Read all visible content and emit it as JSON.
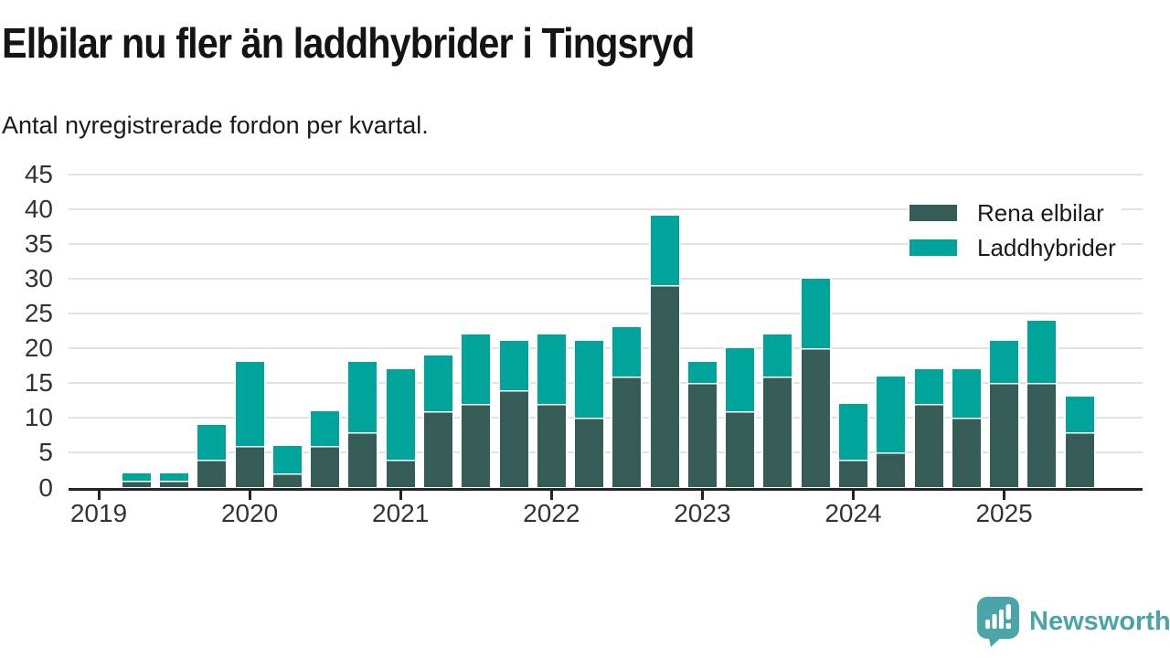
{
  "header": {
    "title": "Elbilar nu fler än laddhybrider i Tingsryd",
    "subtitle": "Antal nyregistrerade fordon per kvartal."
  },
  "legend": [
    {
      "label": "Rena elbilar"
    },
    {
      "label": "Laddhybrider"
    }
  ],
  "footer": {
    "brand": "Newsworthy"
  },
  "colors": {
    "elbilar": "#365c57",
    "laddhybrider": "#00a49b",
    "axis": "#232323",
    "grid": "#e2e2e2",
    "text": "#1a1a1a",
    "tick_label": "#333333",
    "logo": "#4ba4a7"
  },
  "chart_data": {
    "type": "bar",
    "stacked": true,
    "title": "Elbilar nu fler än laddhybrider i Tingsryd",
    "subtitle": "Antal nyregistrerade fordon per kvartal.",
    "categories": [
      "2019Q1",
      "2019Q2",
      "2019Q3",
      "2019Q4",
      "2020Q1",
      "2020Q2",
      "2020Q3",
      "2020Q4",
      "2021Q1",
      "2021Q2",
      "2021Q3",
      "2021Q4",
      "2022Q1",
      "2022Q2",
      "2022Q3",
      "2022Q4",
      "2023Q1",
      "2023Q2",
      "2023Q3",
      "2023Q4",
      "2024Q1",
      "2024Q2",
      "2024Q3",
      "2024Q4",
      "2025Q1",
      "2025Q2",
      "2025Q3"
    ],
    "series": [
      {
        "name": "Rena elbilar",
        "color": "#365c57",
        "values": [
          0,
          1,
          1,
          4,
          6,
          2,
          6,
          8,
          4,
          11,
          12,
          14,
          12,
          10,
          16,
          29,
          15,
          11,
          16,
          20,
          4,
          5,
          12,
          10,
          15,
          15,
          8
        ]
      },
      {
        "name": "Laddhybrider",
        "color": "#00a49b",
        "values": [
          0,
          1,
          1,
          5,
          12,
          4,
          5,
          10,
          13,
          8,
          10,
          7,
          10,
          11,
          7,
          10,
          3,
          9,
          6,
          10,
          8,
          11,
          5,
          7,
          6,
          9,
          5
        ]
      }
    ],
    "x_tick_labels": [
      "2019",
      "2020",
      "2021",
      "2022",
      "2023",
      "2024",
      "2025"
    ],
    "xlabel": "",
    "ylabel": "",
    "ylim": [
      0,
      45
    ],
    "y_ticks": [
      0,
      5,
      10,
      15,
      20,
      25,
      30,
      35,
      40,
      45
    ],
    "grid": "horizontal",
    "legend_position": "top-right"
  }
}
